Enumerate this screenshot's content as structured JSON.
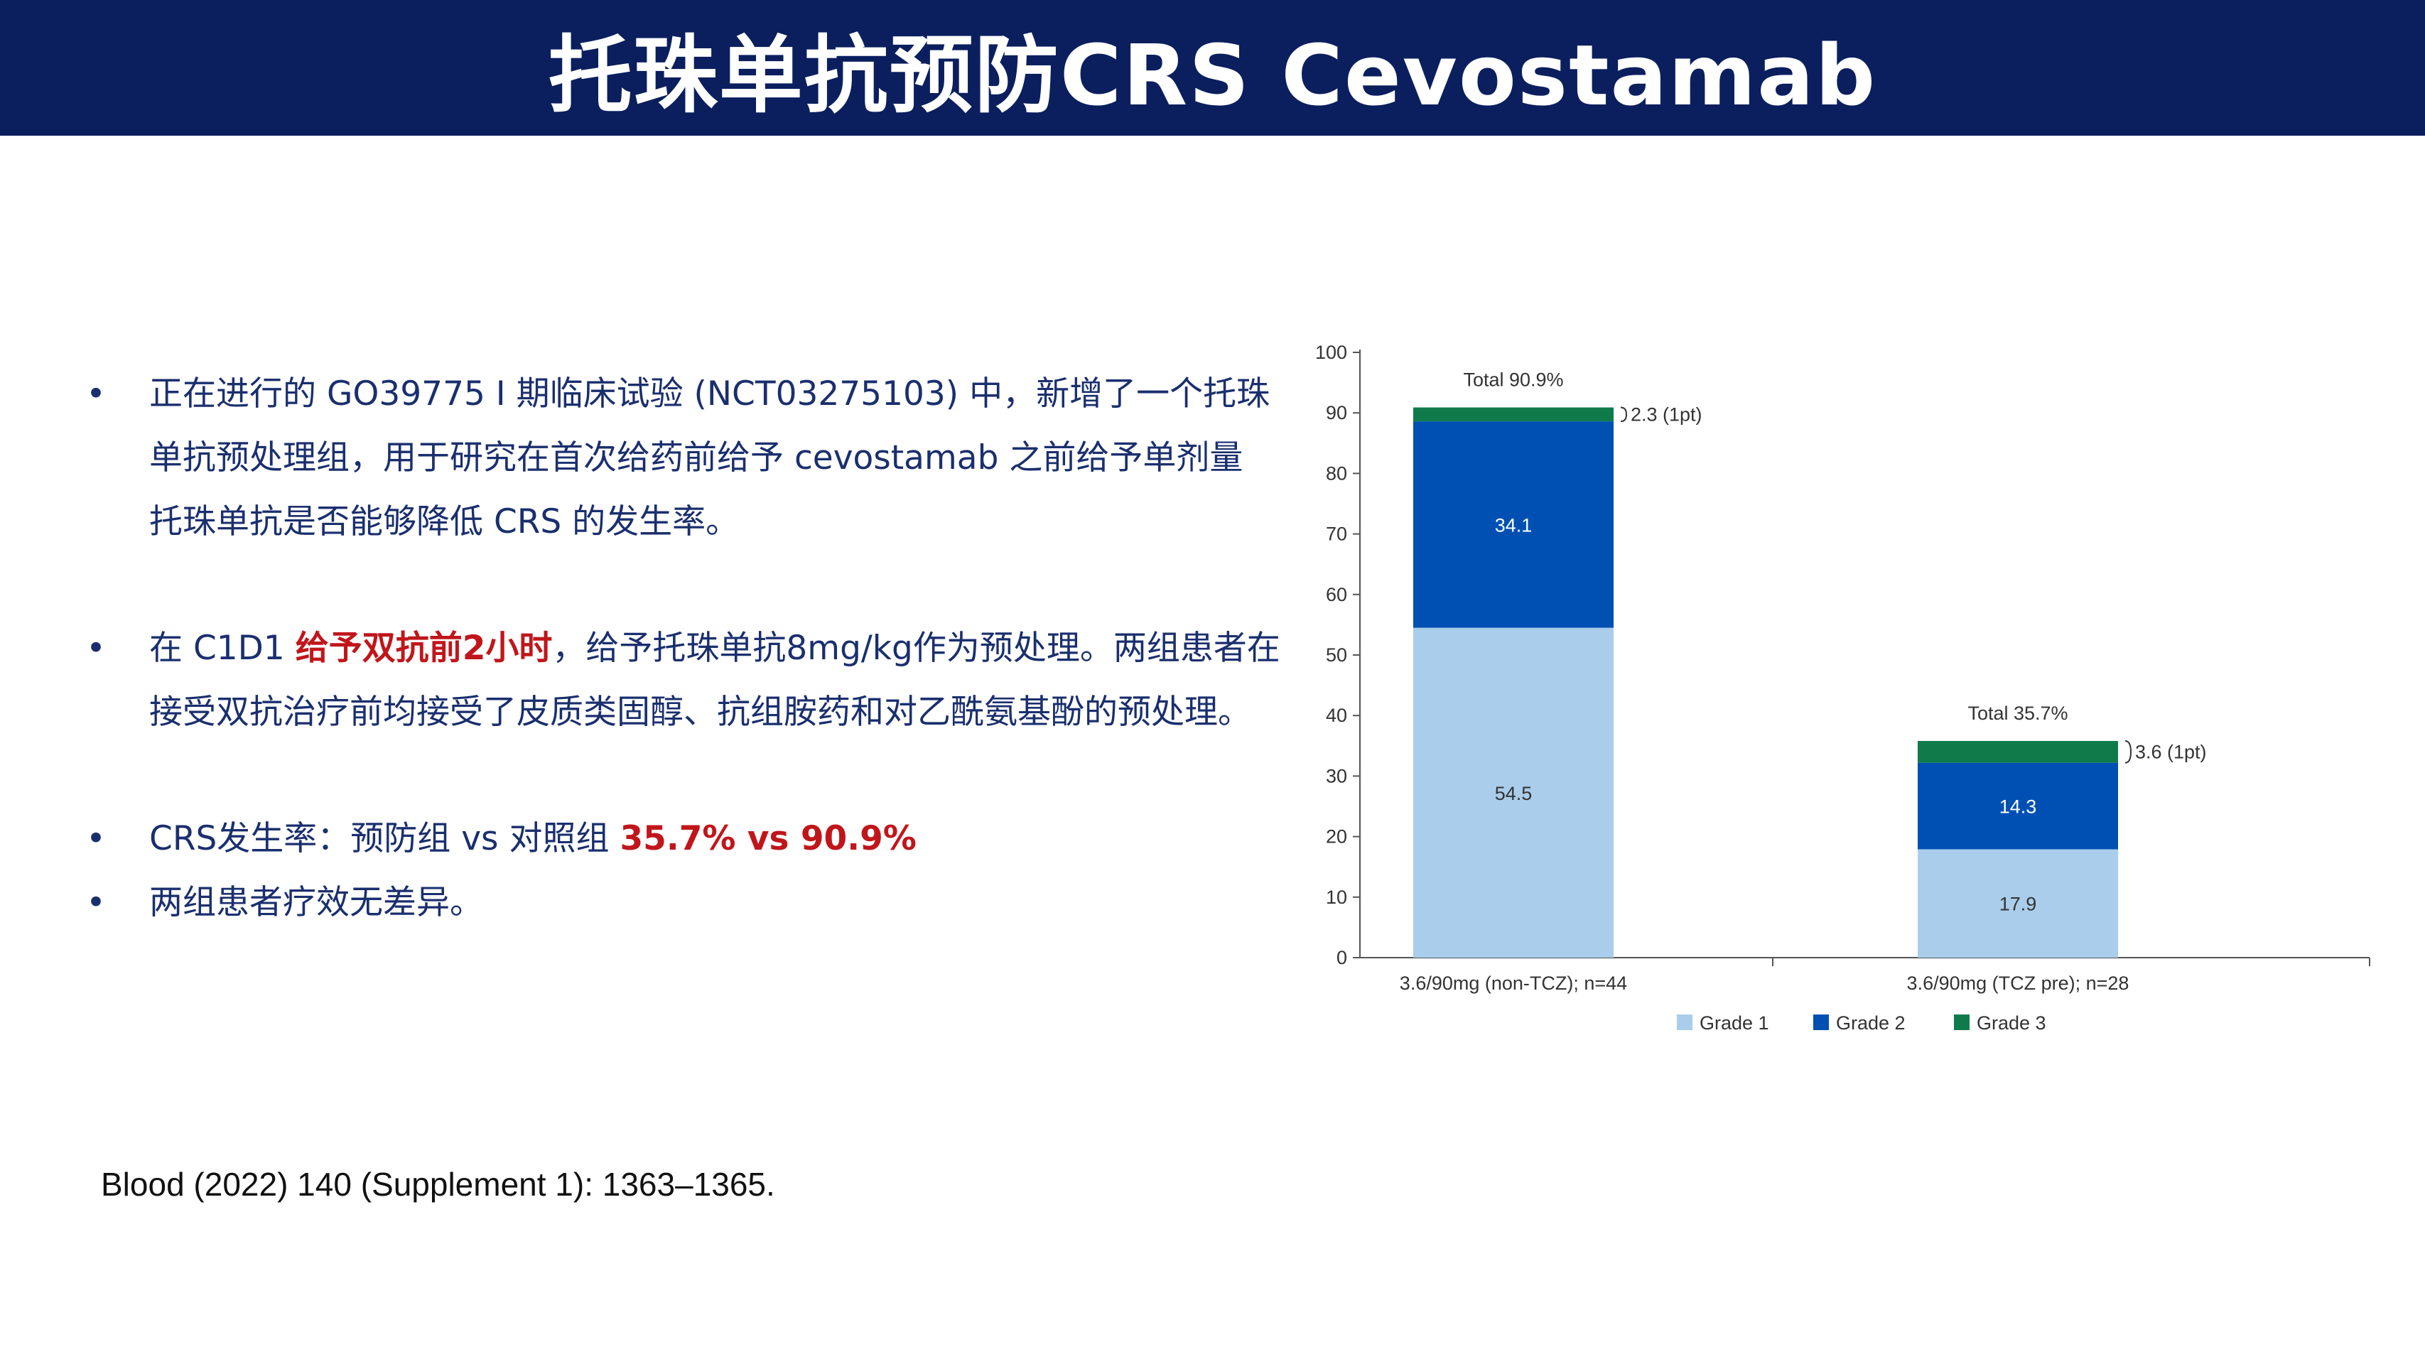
{
  "header": {
    "title": "托珠单抗预防CRS Cevostamab",
    "background": "#0b1f5e"
  },
  "bullets": [
    {
      "text": "正在进行的 GO39775 I 期临床试验 (NCT03275103) 中，新增了一个托珠单抗预处理组，用于研究在首次给药前给予 cevostamab 之前给予单剂量 托珠单抗是否能够降低 CRS 的发生率。"
    },
    {
      "prefix": "在 C1D1 ",
      "highlight": "给予双抗前2小时",
      "suffix": "，给予托珠单抗8mg/kg作为预处理。两组患者在接受双抗治疗前均接受了皮质类固醇、抗组胺药和对乙酰氨基酚的预处理。"
    },
    {
      "prefix": "CRS发生率：预防组 vs 对照组 ",
      "highlight": "35.7% vs 90.9%"
    },
    {
      "text": "两组患者疗效无差异。"
    }
  ],
  "bullet_symbol": "•",
  "citation": "Blood (2022) 140 (Supplement 1): 1363–1365.",
  "colors": {
    "text": "#1a2f6e",
    "highlight": "#c0161b"
  },
  "chart_data": {
    "type": "bar",
    "stacked": true,
    "categories": [
      "3.6/90mg (non-TCZ); n=44",
      "3.6/90mg (TCZ pre); n=28"
    ],
    "series": [
      {
        "name": "Grade 1",
        "values": [
          54.5,
          17.9
        ],
        "color": "#a9cdea"
      },
      {
        "name": "Grade 2",
        "values": [
          34.1,
          14.3
        ],
        "color": "#0050b3"
      },
      {
        "name": "Grade 3",
        "values": [
          2.3,
          3.6
        ],
        "color": "#0f7b4b"
      }
    ],
    "data_labels": [
      [
        "54.5",
        "17.9"
      ],
      [
        "34.1",
        "14.3"
      ],
      [
        "2.3 (1pt)",
        "3.6 (1pt)"
      ]
    ],
    "totals": [
      "Total 90.9%",
      "Total 35.7%"
    ],
    "yticks": [
      0,
      10,
      20,
      30,
      40,
      50,
      60,
      70,
      80,
      90,
      100
    ],
    "ylim": [
      0,
      100
    ],
    "grid": false,
    "legend_position": "bottom"
  }
}
